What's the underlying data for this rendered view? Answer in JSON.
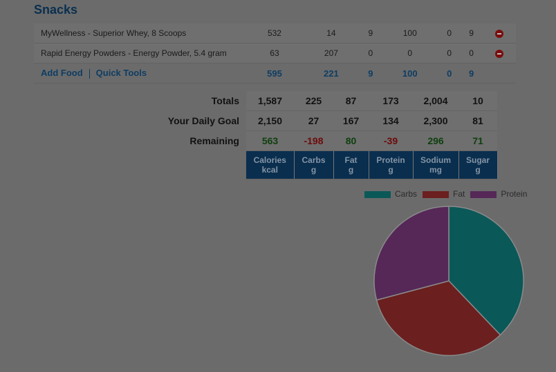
{
  "section_title": "Snacks",
  "foods": [
    {
      "name": "MyWellness - Superior Whey, 8 Scoops",
      "values": [
        "532",
        "14",
        "9",
        "100",
        "0",
        "9"
      ]
    },
    {
      "name": "Rapid Energy Powders - Energy Powder, 5.4 gram",
      "values": [
        "63",
        "207",
        "0",
        "0",
        "0",
        "0"
      ]
    }
  ],
  "footer": {
    "add_food": "Add Food",
    "quick_tools": "Quick Tools",
    "values": [
      "595",
      "221",
      "9",
      "100",
      "0",
      "9"
    ]
  },
  "summary": {
    "totals": {
      "label": "Totals",
      "values": [
        "1,587",
        "225",
        "87",
        "173",
        "2,004",
        "10"
      ]
    },
    "goal": {
      "label": "Your Daily Goal",
      "values": [
        "2,150",
        "27",
        "167",
        "134",
        "2,300",
        "81"
      ]
    },
    "remaining": {
      "label": "Remaining",
      "values": [
        "563",
        "-198",
        "80",
        "-39",
        "296",
        "71"
      ]
    },
    "columns": [
      {
        "name": "Calories",
        "unit": "kcal"
      },
      {
        "name": "Carbs",
        "unit": "g"
      },
      {
        "name": "Fat",
        "unit": "g"
      },
      {
        "name": "Protein",
        "unit": "g"
      },
      {
        "name": "Sodium",
        "unit": "mg"
      },
      {
        "name": "Sugar",
        "unit": "g"
      }
    ]
  },
  "chart_data": {
    "type": "pie",
    "labels": [
      "Carbs",
      "Fat",
      "Protein"
    ],
    "values": [
      900,
      783,
      692
    ],
    "colors": [
      "#0b5858",
      "#6b1f1f",
      "#552857"
    ],
    "legend": "top-right"
  }
}
